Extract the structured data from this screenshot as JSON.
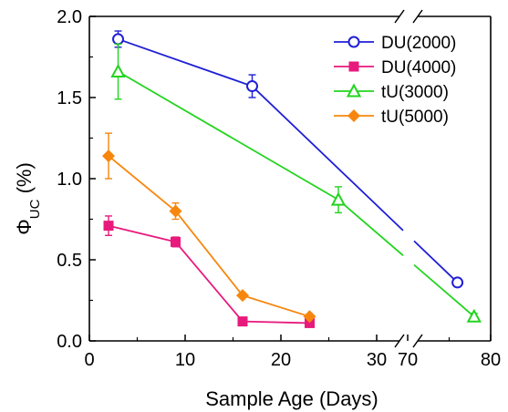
{
  "chart_data": {
    "type": "line",
    "xlabel": "Sample Age (Days)",
    "ylabel": "Φ",
    "ylabel_sub": "UC",
    "ylabel_unit": " (%)",
    "ylim": [
      0,
      2.0
    ],
    "yticks": [
      "0.0",
      "0.5",
      "1.0",
      "1.5",
      "2.0"
    ],
    "xticks": [
      "0",
      "10",
      "20",
      "30",
      "70",
      "80"
    ],
    "x_axis": {
      "broken": true,
      "segments": [
        {
          "range": [
            0,
            32
          ],
          "ticks": [
            0,
            10,
            20,
            30
          ]
        },
        {
          "range": [
            68,
            80
          ],
          "ticks": [
            70,
            80
          ]
        }
      ]
    },
    "legend_position": "top-right",
    "grid": false,
    "series": [
      {
        "name": "DU(2000)",
        "color": "#1f1fd6",
        "marker": "circle-open",
        "points": [
          {
            "x": 3,
            "y": 1.86,
            "err": 0.05
          },
          {
            "x": 17,
            "y": 1.57,
            "err": 0.07
          },
          {
            "x": 76,
            "y": 0.36,
            "err": 0.02
          }
        ]
      },
      {
        "name": "DU(4000)",
        "color": "#e8197c",
        "marker": "square-filled",
        "points": [
          {
            "x": 2,
            "y": 0.71,
            "err": 0.06
          },
          {
            "x": 9,
            "y": 0.61,
            "err": 0.03
          },
          {
            "x": 16,
            "y": 0.12,
            "err": 0.01
          },
          {
            "x": 23,
            "y": 0.11,
            "err": 0.01
          }
        ]
      },
      {
        "name": "tU(3000)",
        "color": "#22d41e",
        "marker": "triangle-open",
        "points": [
          {
            "x": 3,
            "y": 1.66,
            "err": 0.17
          },
          {
            "x": 26,
            "y": 0.87,
            "err": 0.08
          },
          {
            "x": 78,
            "y": 0.15,
            "err": 0.02
          }
        ]
      },
      {
        "name": "tU(5000)",
        "color": "#f7860e",
        "marker": "diamond-filled",
        "points": [
          {
            "x": 2,
            "y": 1.14,
            "err": 0.14
          },
          {
            "x": 9,
            "y": 0.8,
            "err": 0.05
          },
          {
            "x": 16,
            "y": 0.28,
            "err": 0.01
          },
          {
            "x": 23,
            "y": 0.15,
            "err": 0.01
          }
        ]
      }
    ]
  }
}
